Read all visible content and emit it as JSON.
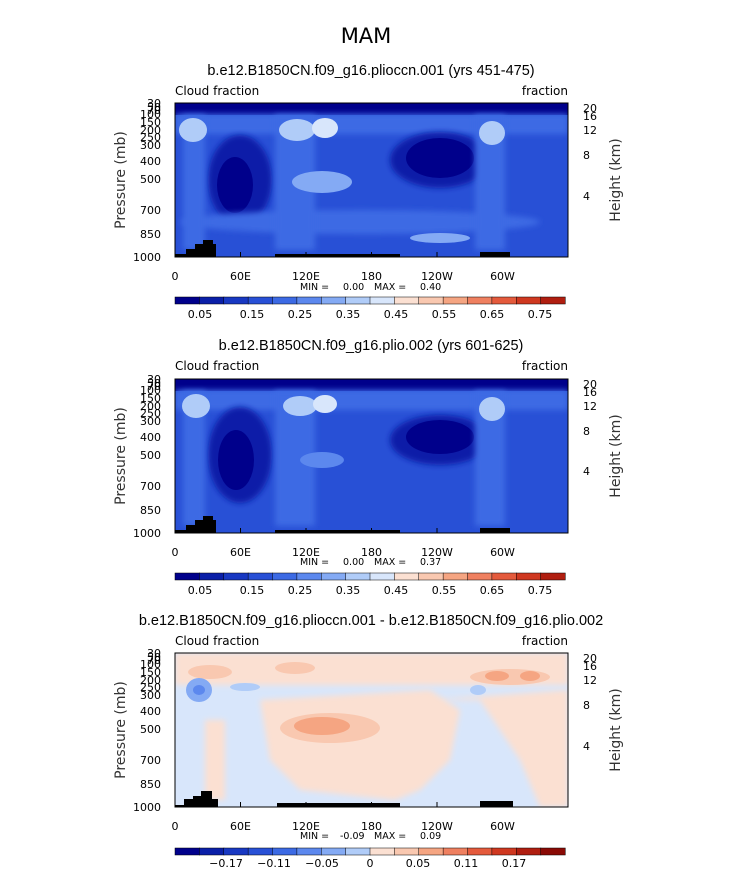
{
  "chart_data": {
    "suptitle": "MAM",
    "panels": [
      {
        "type": "heatmap",
        "subtype": "latitude-pressure contour (filled)",
        "title": "b.e12.B1850CN.f09_g16.plioccn.001 (yrs 451-475)",
        "left_label": "Cloud fraction",
        "right_label": "fraction",
        "ylabel": "Pressure (mb)",
        "y2label": "Height (km)",
        "x_ticks": [
          "0",
          "60E",
          "120E",
          "180",
          "120W",
          "60W"
        ],
        "y_ticks": [
          "30",
          "50",
          "70",
          "100",
          "150",
          "200",
          "250",
          "300",
          "400",
          "500",
          "700",
          "850",
          "1000"
        ],
        "y2_ticks": [
          "20",
          "16",
          "12",
          "8",
          "4"
        ],
        "x_range": [
          0,
          360
        ],
        "y_range": [
          1000,
          30
        ],
        "stats": {
          "min": "0.00",
          "max": "0.40"
        },
        "stats_text": {
          "min_label": "MIN =",
          "min": "0.00",
          "max_label": "MAX =",
          "max": "0.40"
        },
        "colorbar_labels": [
          "0.05",
          "0.15",
          "0.25",
          "0.35",
          "0.45",
          "0.55",
          "0.65",
          "0.75"
        ],
        "features": [
          {
            "lon": 10,
            "p": 200,
            "value": 0.35
          },
          {
            "lon": 120,
            "p": 200,
            "value": 0.4
          },
          {
            "lon": 150,
            "p": 200,
            "value": 0.38
          },
          {
            "lon": 130,
            "p": 500,
            "value": 0.35
          },
          {
            "lon": 290,
            "p": 200,
            "value": 0.38
          },
          {
            "lon": 200,
            "p": 400,
            "value": 0.02
          },
          {
            "lon": 50,
            "p": 450,
            "value": 0.03
          }
        ]
      },
      {
        "type": "heatmap",
        "subtype": "latitude-pressure contour (filled)",
        "title": "b.e12.B1850CN.f09_g16.plio.002 (yrs 601-625)",
        "left_label": "Cloud fraction",
        "right_label": "fraction",
        "ylabel": "Pressure (mb)",
        "y2label": "Height (km)",
        "x_ticks": [
          "0",
          "60E",
          "120E",
          "180",
          "120W",
          "60W"
        ],
        "y_ticks": [
          "30",
          "50",
          "70",
          "100",
          "150",
          "200",
          "250",
          "300",
          "400",
          "500",
          "700",
          "850",
          "1000"
        ],
        "y2_ticks": [
          "20",
          "16",
          "12",
          "8",
          "4"
        ],
        "x_range": [
          0,
          360
        ],
        "y_range": [
          1000,
          30
        ],
        "stats": {
          "min": "0.00",
          "max": "0.37"
        },
        "stats_text": {
          "min_label": "MIN =",
          "min": "0.00",
          "max_label": "MAX =",
          "max": "0.37"
        },
        "colorbar_labels": [
          "0.05",
          "0.15",
          "0.25",
          "0.35",
          "0.45",
          "0.55",
          "0.65",
          "0.75"
        ],
        "features": [
          {
            "lon": 15,
            "p": 200,
            "value": 0.35
          },
          {
            "lon": 125,
            "p": 200,
            "value": 0.37
          },
          {
            "lon": 150,
            "p": 200,
            "value": 0.35
          },
          {
            "lon": 290,
            "p": 200,
            "value": 0.36
          },
          {
            "lon": 200,
            "p": 400,
            "value": 0.02
          },
          {
            "lon": 50,
            "p": 450,
            "value": 0.03
          }
        ]
      },
      {
        "type": "heatmap",
        "subtype": "difference contour (filled)",
        "title": "b.e12.B1850CN.f09_g16.plioccn.001 - b.e12.B1850CN.f09_g16.plio.002",
        "left_label": "Cloud fraction",
        "right_label": "fraction",
        "ylabel": "Pressure (mb)",
        "y2label": "Height (km)",
        "x_ticks": [
          "0",
          "60E",
          "120E",
          "180",
          "120W",
          "60W"
        ],
        "y_ticks": [
          "30",
          "50",
          "70",
          "100",
          "150",
          "200",
          "250",
          "300",
          "400",
          "500",
          "700",
          "850",
          "1000"
        ],
        "y2_ticks": [
          "20",
          "16",
          "12",
          "8",
          "4"
        ],
        "x_range": [
          0,
          360
        ],
        "y_range": [
          1000,
          30
        ],
        "stats": {
          "min": "-0.09",
          "max": "0.09"
        },
        "stats_text": {
          "min_label": "MIN =",
          "min": "-0.09",
          "max_label": "MAX =",
          "max": "0.09"
        },
        "colorbar_labels": [
          "−0.17",
          "−0.11",
          "−0.05",
          "0",
          "0.05",
          "0.11",
          "0.17"
        ],
        "features": [
          {
            "lon": 140,
            "p": 450,
            "value": 0.08
          },
          {
            "lon": 290,
            "p": 180,
            "value": 0.07
          },
          {
            "lon": 25,
            "p": 230,
            "value": -0.06
          },
          {
            "lon": 100,
            "p": 200,
            "value": -0.02
          }
        ]
      }
    ]
  },
  "colors": {
    "blue_scale": [
      "#00008b",
      "#0a1fa8",
      "#1838c2",
      "#2850d6",
      "#3c6ae4",
      "#5c88ee",
      "#84aaf4",
      "#b0ccf8",
      "#d8e6fb"
    ],
    "red_scale": [
      "#fbe0d2",
      "#f9c8b0",
      "#f5a582",
      "#ef8060",
      "#e45a3c",
      "#cf3820",
      "#b01e10",
      "#8a0a05"
    ],
    "topography": "#000000"
  }
}
